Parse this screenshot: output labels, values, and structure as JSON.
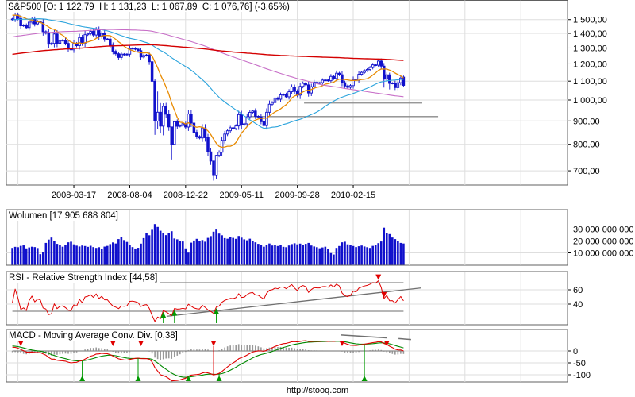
{
  "header": {
    "title": "S&P500 [O: 1 122,79  H: 1 131,23  L: 1 067,89  C: 1 076,76] (-3,65%)"
  },
  "panels": {
    "volume_label": "Wolumen [17 905 688 804]",
    "rsi_label": "RSI - Relative Strength Index [44,58]",
    "macd_label": "MACD - Moving Average Conv. Div. [0,38]"
  },
  "footer": {
    "url": "http://stooq.com"
  },
  "axes": {
    "date_ticks": [
      {
        "label": "2008-03-17",
        "week": 22
      },
      {
        "label": "2008-08-04",
        "week": 42
      },
      {
        "label": "2008-12-22",
        "week": 62
      },
      {
        "label": "2009-05-11",
        "week": 82
      },
      {
        "label": "2009-09-28",
        "week": 102
      },
      {
        "label": "2010-02-15",
        "week": 122
      }
    ],
    "price_ticks": [
      {
        "label": "1 500,00",
        "value": 1500
      },
      {
        "label": "1 400,00",
        "value": 1400
      },
      {
        "label": "1 300,00",
        "value": 1300
      },
      {
        "label": "1 200,00",
        "value": 1200
      },
      {
        "label": "1 100,00",
        "value": 1100
      },
      {
        "label": "1 000,00",
        "value": 1000
      },
      {
        "label": "900,00",
        "value": 900
      },
      {
        "label": "800,00",
        "value": 800
      },
      {
        "label": "700,00",
        "value": 700
      }
    ],
    "volume_ticks": [
      {
        "label": "30 000 000 000",
        "value": 30
      },
      {
        "label": "20 000 000 000",
        "value": 20
      },
      {
        "label": "10 000 000 000",
        "value": 10
      }
    ],
    "rsi_ticks": [
      {
        "label": "60",
        "value": 60
      },
      {
        "label": "40",
        "value": 40
      }
    ],
    "macd_ticks": [
      {
        "label": "0",
        "value": 0
      },
      {
        "label": "-50",
        "value": -50
      },
      {
        "label": "-100",
        "value": -100
      }
    ]
  },
  "chart_data": {
    "type": "candlestick",
    "frequency": "weekly",
    "start_week": "2007-10-15",
    "weeks": 141,
    "first_open": 1505,
    "open_override": {
      "140": 1122.79
    },
    "closes": [
      1500.63,
      1535.28,
      1509.65,
      1453.7,
      1458.74,
      1440.7,
      1481.14,
      1504.66,
      1467.95,
      1484.46,
      1478.49,
      1411.63,
      1401.02,
      1325.19,
      1330.61,
      1395.42,
      1331.29,
      1349.99,
      1353.11,
      1330.63,
      1293.37,
      1288.14,
      1329.51,
      1315.22,
      1370.4,
      1332.83,
      1390.33,
      1397.84,
      1413.9,
      1388.28,
      1425.35,
      1375.93,
      1400.38,
      1360.68,
      1360.03,
      1317.93,
      1278.38,
      1262.9,
      1239.49,
      1260.68,
      1257.76,
      1260.31,
      1296.32,
      1298.2,
      1292.2,
      1282.83,
      1242.31,
      1251.7,
      1255.08,
      1213.27,
      1099.23,
      899.22,
      940.55,
      876.77,
      968.75,
      930.99,
      873.29,
      800.03,
      896.24,
      876.07,
      879.73,
      887.88,
      872.8,
      931.8,
      890.35,
      850.12,
      831.95,
      825.88,
      868.6,
      826.84,
      770.05,
      735.09,
      683.38,
      756.55,
      768.54,
      815.94,
      842.5,
      856.56,
      869.6,
      866.23,
      877.52,
      929.23,
      882.88,
      887.0,
      919.14,
      940.09,
      946.21,
      921.23,
      918.9,
      896.42,
      879.13,
      940.38,
      979.26,
      987.48,
      1010.48,
      1004.09,
      1026.13,
      1028.93,
      1016.4,
      1042.73,
      1068.3,
      1044.38,
      1025.21,
      1071.49,
      1087.68,
      1079.6,
      1036.19,
      1069.3,
      1093.48,
      1091.38,
      1091.49,
      1105.98,
      1106.41,
      1102.47,
      1126.48,
      1115.1,
      1144.98,
      1136.03,
      1091.76,
      1073.87,
      1066.19,
      1075.51,
      1109.17,
      1104.49,
      1138.7,
      1149.99,
      1159.9,
      1166.59,
      1178.1,
      1194.37,
      1192.13,
      1217.28,
      1186.69,
      1110.88,
      1135.68,
      1087.69,
      1089.41,
      1064.88,
      1091.6,
      1117.51,
      1076.76
    ],
    "wick_overrides": {
      "50": [
        1214,
        1098
      ],
      "51": [
        1114,
        839
      ],
      "52": [
        1044,
        865
      ],
      "53": [
        985,
        845
      ],
      "54": [
        984,
        837
      ],
      "57": [
        873,
        741
      ],
      "58": [
        896,
        801
      ],
      "72": [
        724,
        666
      ],
      "73": [
        758,
        672
      ],
      "133": [
        1205,
        1065
      ],
      "135": [
        1148,
        1055
      ],
      "140": [
        1131.23,
        1067.89
      ]
    },
    "volumes_billions": [
      14.2,
      15.1,
      14.8,
      15.9,
      16.3,
      13.8,
      14.6,
      15.2,
      14.9,
      14.1,
      8.9,
      10.5,
      18.4,
      21.2,
      22.9,
      19.8,
      17.6,
      16.4,
      15.2,
      16.8,
      18.9,
      19.4,
      17.2,
      16.1,
      15.4,
      16.2,
      15.8,
      15.1,
      16.0,
      14.9,
      14.2,
      14.8,
      13.6,
      15.3,
      15.9,
      17.4,
      18.8,
      17.9,
      21.6,
      23.4,
      20.8,
      19.2,
      16.8,
      14.9,
      13.7,
      14.3,
      17.8,
      22.4,
      26.9,
      24.8,
      29.4,
      34.2,
      31.8,
      28.6,
      26.4,
      24.9,
      26.8,
      28.2,
      22.1,
      21.4,
      20.2,
      19.6,
      13.8,
      10.2,
      18.6,
      20.4,
      21.8,
      19.9,
      20.8,
      19.4,
      22.6,
      24.1,
      27.8,
      29.6,
      26.2,
      24.8,
      22.4,
      21.9,
      23.1,
      22.6,
      21.8,
      24.2,
      22.8,
      21.4,
      20.6,
      21.9,
      20.1,
      18.9,
      17.6,
      16.4,
      15.2,
      16.8,
      17.9,
      16.2,
      16.9,
      15.8,
      16.4,
      15.1,
      14.8,
      16.2,
      17.4,
      18.1,
      17.2,
      17.8,
      16.9,
      17.6,
      18.4,
      16.2,
      15.4,
      14.8,
      13.9,
      14.6,
      15.2,
      13.4,
      9.8,
      8.6,
      14.2,
      15.8,
      18.9,
      19.4,
      17.2,
      16.4,
      15.8,
      14.9,
      15.6,
      16.2,
      15.4,
      14.8,
      14.2,
      15.9,
      16.8,
      18.2,
      19.6,
      31.2,
      26.4,
      25.8,
      22.9,
      21.6,
      19.8,
      18.4,
      17.9
    ],
    "ma_seed_anchors": [
      [
        0,
        1040
      ],
      [
        30,
        1120
      ],
      [
        60,
        1175
      ],
      [
        90,
        1195
      ],
      [
        100,
        1200
      ],
      [
        130,
        1270
      ],
      [
        155,
        1400
      ],
      [
        180,
        1510
      ],
      [
        199,
        1545
      ]
    ],
    "overlays": [
      {
        "name": "sma10",
        "period": 10,
        "color": "#e88a00",
        "width": 1.3
      },
      {
        "name": "sma40",
        "period": 40,
        "color": "#2aa3dc",
        "width": 1.1
      },
      {
        "name": "sma100",
        "period": 100,
        "color": "#c76ec7",
        "width": 1.1
      },
      {
        "name": "sma200",
        "period": 200,
        "color": "#d40000",
        "width": 1.4
      }
    ],
    "main_level_lines": [
      {
        "price": 920,
        "x1_week": 84.5,
        "x2_week": 152.4
      },
      {
        "price": 985,
        "x1_week": 104.4,
        "x2_week": 146.7
      }
    ],
    "rsi": {
      "period": 14,
      "bands": [
        70,
        30
      ],
      "trendline": [
        [
          55.2,
          22.9
        ],
        [
          146.4,
          62.7
        ]
      ]
    },
    "macd": {
      "fast": 12,
      "slow": 26,
      "signal": 9,
      "trend_segments": [
        [
          [
            117.7,
            67
          ],
          [
            134,
            55
          ]
        ],
        [
          [
            138.2,
            52
          ],
          [
            142.7,
            48
          ]
        ]
      ]
    },
    "signals": {
      "macd_sell_weeks": [
        3,
        36,
        46,
        72,
        118,
        134
      ],
      "macd_buy_weeks": [
        25,
        45,
        63,
        74,
        126
      ],
      "macd_sell_stem_week": 72,
      "rsi_buy_weeks": [
        54,
        58,
        73
      ],
      "rsi_sell_weeks": [
        131,
        133
      ]
    }
  },
  "colors": {
    "candle": "#1010cc",
    "volume": "#1010cc",
    "rsi_line": "#e00000",
    "macd_line": "#e00000",
    "signal_line": "#008800",
    "hist": "#999999",
    "grid": "#dedede",
    "border": "#606060",
    "axis_text": "#000000",
    "level": "#8a8a8a",
    "trend": "#707070",
    "arrow_up": "#009900",
    "arrow_down": "#e00000",
    "background": "#ffffff"
  }
}
